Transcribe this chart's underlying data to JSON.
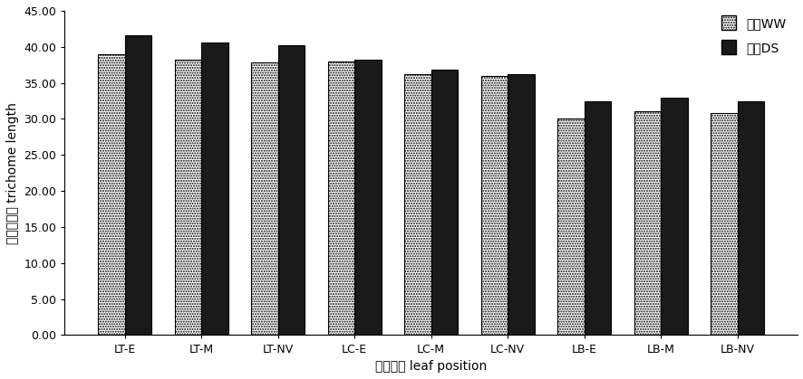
{
  "categories": [
    "LT-E",
    "LT-M",
    "LT-NV",
    "LC-E",
    "LC-M",
    "LC-NV",
    "LB-E",
    "LB-M",
    "LB-NV"
  ],
  "ww_values": [
    39.0,
    38.2,
    37.8,
    38.0,
    36.2,
    36.0,
    30.0,
    31.0,
    30.8
  ],
  "ds_values": [
    41.6,
    40.6,
    40.2,
    38.2,
    36.8,
    36.2,
    32.4,
    33.0,
    32.4
  ],
  "xlabel": "叶片部位 leaf position",
  "ylabel": "表皮毛长度 trichome length",
  "ylim": [
    0,
    45
  ],
  "yticks": [
    0.0,
    5.0,
    10.0,
    15.0,
    20.0,
    25.0,
    30.0,
    35.0,
    40.0,
    45.0
  ],
  "legend_ww": "水地WW",
  "legend_ds": "旱地DS",
  "bar_width": 0.35,
  "background_color": "#ffffff",
  "ww_facecolor": "#ffffff",
  "ww_edgecolor": "#000000",
  "ds_facecolor": "#1a1a1a",
  "ds_edgecolor": "#000000"
}
